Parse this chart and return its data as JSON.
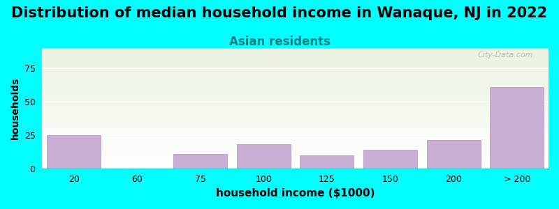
{
  "title": "Distribution of median household income in Wanaque, NJ in 2022",
  "subtitle": "Asian residents",
  "xlabel": "household income ($1000)",
  "ylabel": "households",
  "background_color": "#00FFFF",
  "plot_bg_top": "#eaf2e0",
  "plot_bg_bottom": "#ffffff",
  "bar_color": "#c9afd4",
  "bar_edge_color": "#b090c0",
  "categories": [
    "20",
    "60",
    "75",
    "100",
    "125",
    "150",
    "200",
    "> 200"
  ],
  "values": [
    25,
    0,
    11,
    18,
    10,
    14,
    21,
    61
  ],
  "ylim": [
    0,
    90
  ],
  "yticks": [
    0,
    25,
    50,
    75
  ],
  "title_fontsize": 15,
  "subtitle_fontsize": 12,
  "subtitle_color": "#008080",
  "xlabel_fontsize": 11,
  "ylabel_fontsize": 10,
  "watermark": "City-Data.com"
}
